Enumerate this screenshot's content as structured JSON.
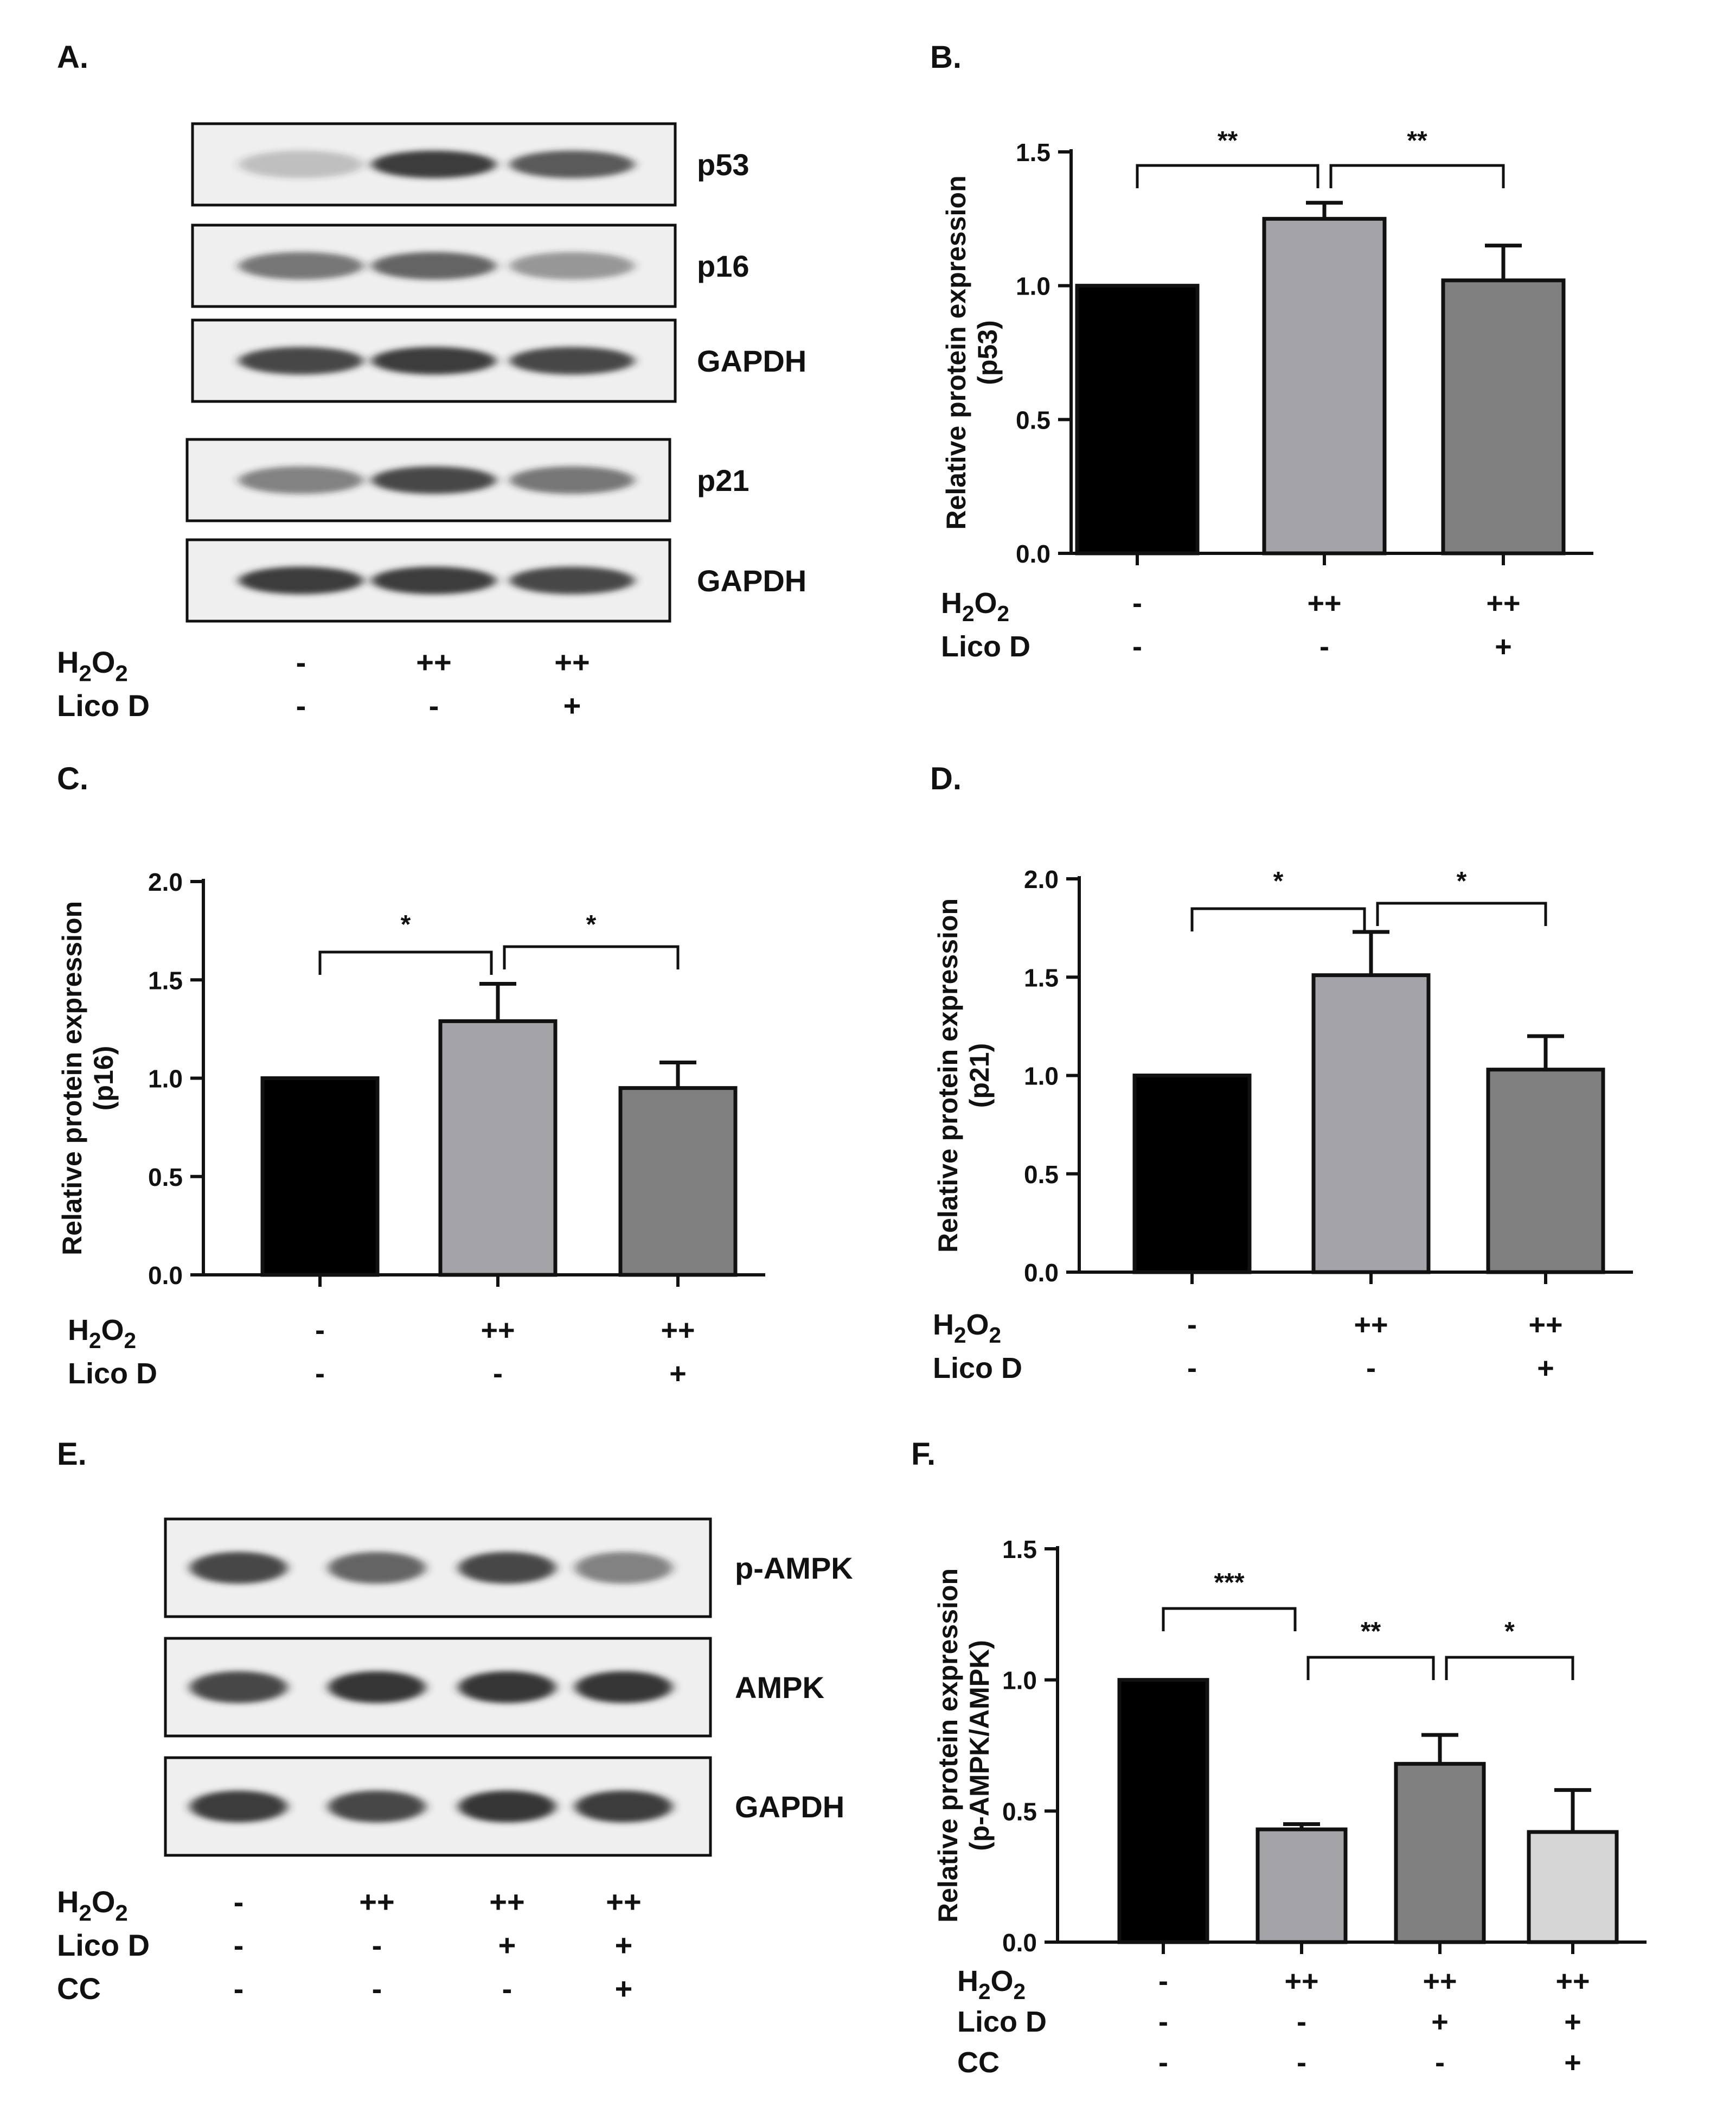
{
  "panel_labels": {
    "A": "A.",
    "B": "B.",
    "C": "C.",
    "D": "D.",
    "E": "E.",
    "F": "F."
  },
  "colors": {
    "control": "#000000",
    "h2o2": "#a3a3a8",
    "lico": "#808080",
    "cc": "#d6d6d6",
    "blot_bg": "#efefef",
    "band": "#2a2a2a"
  },
  "conditions": {
    "h2o2_main": "H",
    "h2o2_sub": "2",
    "h2o2_o": "O",
    "lico": "Lico D",
    "cc": "CC"
  },
  "blot_A": {
    "lanes": 3,
    "rows": [
      {
        "label": "p53",
        "bands": [
          0.25,
          0.9,
          0.75
        ]
      },
      {
        "label": "p16",
        "bands": [
          0.6,
          0.7,
          0.45
        ]
      },
      {
        "label": "GAPDH",
        "bands": [
          0.85,
          0.9,
          0.85
        ]
      },
      {
        "label": "p21",
        "bands": [
          0.55,
          0.85,
          0.6
        ]
      },
      {
        "label": "GAPDH",
        "bands": [
          0.9,
          0.9,
          0.85
        ]
      }
    ],
    "h2o2": [
      "-",
      "++",
      "++"
    ],
    "lico": [
      "-",
      "-",
      "+"
    ]
  },
  "blot_E": {
    "lanes": 4,
    "rows": [
      {
        "label": "p-AMPK",
        "bands": [
          0.85,
          0.7,
          0.85,
          0.55
        ]
      },
      {
        "label": "AMPK",
        "bands": [
          0.85,
          0.95,
          0.95,
          0.95
        ]
      },
      {
        "label": "GAPDH",
        "bands": [
          0.9,
          0.85,
          0.95,
          0.9
        ]
      }
    ],
    "h2o2": [
      "-",
      "++",
      "++",
      "++"
    ],
    "lico": [
      "-",
      "-",
      "+",
      "+"
    ],
    "cc": [
      "-",
      "-",
      "-",
      "+"
    ]
  },
  "chart_data": [
    {
      "panel": "B",
      "type": "bar",
      "ylabel_line1": "Relative protein expression",
      "ylabel_line2": "(p53)",
      "ylim": [
        0,
        1.5
      ],
      "ticks": [
        0.0,
        0.5,
        1.0,
        1.5
      ],
      "tick_labels": [
        "0.0",
        "0.5",
        "1.0",
        "1.5"
      ],
      "values": [
        1.0,
        1.25,
        1.02
      ],
      "errors": [
        0,
        0.06,
        0.13
      ],
      "bar_colors": [
        "control",
        "h2o2",
        "lico"
      ],
      "h2o2": [
        "-",
        "++",
        "++"
      ],
      "lico": [
        "-",
        "-",
        "+"
      ],
      "significance": [
        {
          "from": 0,
          "to": 1,
          "label": "**"
        },
        {
          "from": 1,
          "to": 2,
          "label": "**"
        }
      ]
    },
    {
      "panel": "C",
      "type": "bar",
      "ylabel_line1": "Relative protein expression",
      "ylabel_line2": "(p16)",
      "ylim": [
        0,
        2.0
      ],
      "ticks": [
        0.0,
        0.5,
        1.0,
        1.5,
        2.0
      ],
      "tick_labels": [
        "0.0",
        "0.5",
        "1.0",
        "1.5",
        "2.0"
      ],
      "values": [
        1.0,
        1.29,
        0.95
      ],
      "errors": [
        0,
        0.19,
        0.13
      ],
      "bar_colors": [
        "control",
        "h2o2",
        "lico"
      ],
      "h2o2": [
        "-",
        "++",
        "++"
      ],
      "lico": [
        "-",
        "-",
        "+"
      ],
      "significance": [
        {
          "from": 0,
          "to": 1,
          "label": "*"
        },
        {
          "from": 1,
          "to": 2,
          "label": "*"
        }
      ]
    },
    {
      "panel": "D",
      "type": "bar",
      "ylabel_line1": "Relative protein expression",
      "ylabel_line2": "(p21)",
      "ylim": [
        0,
        2.0
      ],
      "ticks": [
        0.0,
        0.5,
        1.0,
        1.5,
        2.0
      ],
      "tick_labels": [
        "0.0",
        "0.5",
        "1.0",
        "1.5",
        "2.0"
      ],
      "values": [
        1.0,
        1.51,
        1.03
      ],
      "errors": [
        0,
        0.22,
        0.17
      ],
      "bar_colors": [
        "control",
        "h2o2",
        "lico"
      ],
      "h2o2": [
        "-",
        "++",
        "++"
      ],
      "lico": [
        "-",
        "-",
        "+"
      ],
      "significance": [
        {
          "from": 0,
          "to": 1,
          "label": "*"
        },
        {
          "from": 1,
          "to": 2,
          "label": "*"
        }
      ]
    },
    {
      "panel": "F",
      "type": "bar",
      "ylabel_line1": "Relative protein expression",
      "ylabel_line2": "(p-AMPK/AMPK)",
      "ylim": [
        0,
        1.5
      ],
      "ticks": [
        0.0,
        0.5,
        1.0,
        1.5
      ],
      "tick_labels": [
        "0.0",
        "0.5",
        "1.0",
        "1.5"
      ],
      "values": [
        1.0,
        0.43,
        0.68,
        0.42
      ],
      "errors": [
        0,
        0.02,
        0.11,
        0.16
      ],
      "bar_colors": [
        "control",
        "h2o2",
        "lico",
        "cc"
      ],
      "h2o2": [
        "-",
        "++",
        "++",
        "++"
      ],
      "lico": [
        "-",
        "-",
        "+",
        "+"
      ],
      "cc": [
        "-",
        "-",
        "-",
        "+"
      ],
      "significance": [
        {
          "from": 0,
          "to": 1,
          "label": "***"
        },
        {
          "from": 1,
          "to": 2,
          "label": "**"
        },
        {
          "from": 2,
          "to": 3,
          "label": "*"
        }
      ]
    }
  ]
}
